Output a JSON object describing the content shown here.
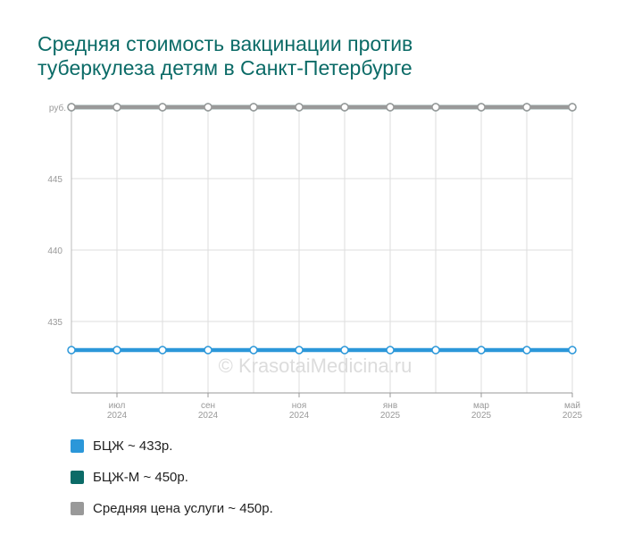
{
  "title_lines": [
    "Средняя стоимость вакцинации против",
    "туберкулеза детям в Санкт-Петербурге"
  ],
  "watermark": "© KrasotaiMedicina.ru",
  "colors": {
    "title": "#0b6b67",
    "bcg": "#2b97d9",
    "bcg_m": "#0b6b67",
    "avg": "#999999"
  },
  "chart_data": {
    "type": "line",
    "title": "Средняя стоимость вакцинации против туберкулеза детям в Санкт-Петербурге",
    "ylabel": "руб.",
    "ylim": [
      430,
      450
    ],
    "yticks": [
      435,
      440,
      445
    ],
    "grid": true,
    "legend_position": "bottom",
    "x": [
      "2024-06",
      "2024-07",
      "2024-08",
      "2024-09",
      "2024-10",
      "2024-11",
      "2024-12",
      "2025-01",
      "2025-02",
      "2025-03",
      "2025-04",
      "2025-05"
    ],
    "x_tick_labels": [
      {
        "index": 1,
        "month": "июл",
        "year": "2024"
      },
      {
        "index": 3,
        "month": "сен",
        "year": "2024"
      },
      {
        "index": 5,
        "month": "ноя",
        "year": "2024"
      },
      {
        "index": 7,
        "month": "янв",
        "year": "2025"
      },
      {
        "index": 9,
        "month": "мар",
        "year": "2025"
      },
      {
        "index": 11,
        "month": "май",
        "year": "2025"
      }
    ],
    "series": [
      {
        "name": "БЦЖ",
        "color": "#2b97d9",
        "values": [
          433,
          433,
          433,
          433,
          433,
          433,
          433,
          433,
          433,
          433,
          433,
          433
        ]
      },
      {
        "name": "БЦЖ-М",
        "color": "#0b6b67",
        "values": [
          450,
          450,
          450,
          450,
          450,
          450,
          450,
          450,
          450,
          450,
          450,
          450
        ]
      },
      {
        "name": "Средняя цена услуги",
        "color": "#999999",
        "values": [
          450,
          450,
          450,
          450,
          450,
          450,
          450,
          450,
          450,
          450,
          450,
          450
        ]
      }
    ]
  },
  "legend": [
    {
      "label": "БЦЖ ~ 433р.",
      "color": "#2b97d9"
    },
    {
      "label": "БЦЖ-М ~ 450р.",
      "color": "#0b6b67"
    },
    {
      "label": "Средняя цена услуги ~ 450р.",
      "color": "#999999"
    }
  ]
}
